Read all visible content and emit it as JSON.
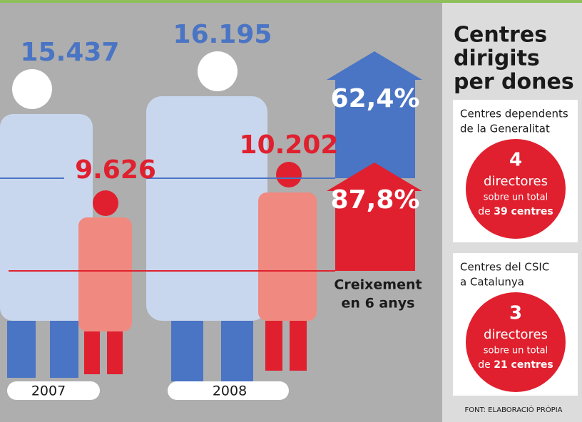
{
  "years": [
    {
      "year": "2007",
      "men": "15.437",
      "women": "9.626"
    },
    {
      "year": "2008",
      "men": "16.195",
      "women": "10.202"
    }
  ],
  "growth": {
    "men": "62,4%",
    "women": "87,8%",
    "label_line1": "Creixement",
    "label_line2": "en 6 anys"
  },
  "side": {
    "title": [
      "Centres",
      "dirigits",
      "per dones"
    ],
    "boxes": [
      {
        "heading": [
          "Centres dependents",
          "de la Generalitat"
        ],
        "count": "4",
        "unit": "directores",
        "line1": "sobre un total",
        "prefix": "de",
        "total": "39 centres"
      },
      {
        "heading": [
          "Centres del CSIC",
          "a Catalunya"
        ],
        "count": "3",
        "unit": "directores",
        "line1": "sobre un total",
        "prefix": "de",
        "total": "21 centres"
      }
    ]
  },
  "source": "FONT: ELABORACIÓ PRÒPIA"
}
